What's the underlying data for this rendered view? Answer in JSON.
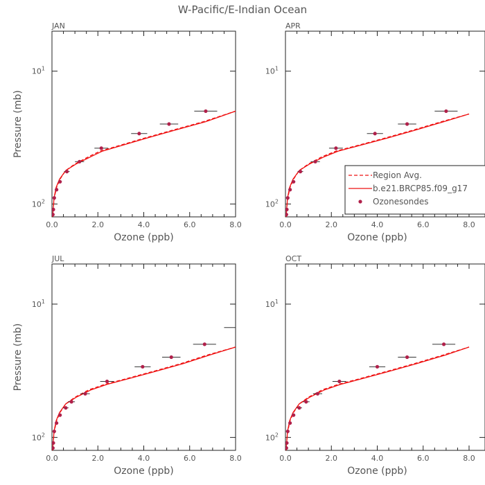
{
  "title": "W-Pacific/E-Indian Ocean",
  "colors": {
    "model": "#ee1111",
    "obs": "#b0204a",
    "axis": "#222222",
    "text": "#555555",
    "errorbar": "#333333"
  },
  "legend": {
    "entries": [
      "Region Avg.",
      "b.e21.BRCP85.f09_g17",
      "Ozonesondes"
    ]
  },
  "chart_data": [
    {
      "type": "line",
      "panel": "JAN",
      "xlabel": "Ozone (ppb)",
      "ylabel": "Pressure (mb)",
      "xlim": [
        0,
        8
      ],
      "ylim": [
        125,
        5
      ],
      "yscale": "log",
      "xticks": [
        "0.0",
        "2.0",
        "4.0",
        "6.0",
        "8.0"
      ],
      "yticks": [
        {
          "value": 10,
          "base": "10",
          "exp": "1"
        },
        {
          "value": 100,
          "base": "10",
          "exp": "2"
        }
      ],
      "series": [
        {
          "name": "Region Avg.",
          "style": "dashed",
          "x": [
            0.03,
            0.05,
            0.1,
            0.2,
            0.35,
            0.6,
            1.0,
            1.6,
            2.1,
            3.0,
            4.0,
            5.2,
            6.6,
            8.0
          ],
          "y": [
            125,
            110,
            90,
            75,
            65,
            56,
            50,
            44,
            40,
            36,
            32,
            28,
            24,
            20
          ]
        },
        {
          "name": "b.e21.BRCP85.f09_g17",
          "style": "solid",
          "x": [
            0.03,
            0.05,
            0.09,
            0.18,
            0.33,
            0.6,
            1.05,
            1.7,
            2.2,
            3.1,
            4.1,
            5.3,
            6.7,
            8.0
          ],
          "y": [
            125,
            110,
            90,
            75,
            65,
            56,
            50,
            44,
            40,
            36,
            32,
            28,
            24,
            20
          ]
        },
        {
          "name": "Ozonesondes",
          "style": "points",
          "x": [
            0.04,
            0.06,
            0.1,
            0.2,
            0.35,
            0.65,
            1.2,
            2.15,
            3.8,
            5.1,
            6.7
          ],
          "y": [
            120,
            110,
            90,
            78,
            68,
            57,
            48,
            38,
            29.5,
            25,
            20
          ],
          "xerr": [
            0.02,
            0.02,
            0.03,
            0.05,
            0.08,
            0.12,
            0.2,
            0.3,
            0.35,
            0.4,
            0.5
          ]
        }
      ]
    },
    {
      "type": "line",
      "panel": "APR",
      "xlabel": "Ozone (ppb)",
      "ylabel": "",
      "xlim": [
        0,
        8
      ],
      "ylim": [
        125,
        5
      ],
      "yscale": "log",
      "xticks": [
        "0.0",
        "2.0",
        "4.0",
        "6.0",
        "8.0"
      ],
      "yticks": [
        {
          "value": 10,
          "base": "10",
          "exp": "1"
        },
        {
          "value": 100,
          "base": "10",
          "exp": "2"
        }
      ],
      "series": [
        {
          "name": "Region Avg.",
          "style": "dashed",
          "x": [
            0.03,
            0.05,
            0.1,
            0.2,
            0.35,
            0.6,
            1.0,
            1.6,
            2.2,
            3.2,
            4.3,
            5.5,
            6.8,
            8.0
          ],
          "y": [
            125,
            110,
            90,
            75,
            65,
            56,
            50,
            44,
            40,
            36,
            32,
            28,
            24,
            21
          ]
        },
        {
          "name": "b.e21.BRCP85.f09_g17",
          "style": "solid",
          "x": [
            0.03,
            0.05,
            0.09,
            0.18,
            0.33,
            0.6,
            1.05,
            1.7,
            2.3,
            3.3,
            4.4,
            5.6,
            6.9,
            8.0
          ],
          "y": [
            125,
            110,
            90,
            75,
            65,
            56,
            50,
            44,
            40,
            36,
            32,
            28,
            24,
            21
          ]
        },
        {
          "name": "Ozonesondes",
          "style": "points",
          "x": [
            0.04,
            0.06,
            0.1,
            0.2,
            0.35,
            0.65,
            1.3,
            2.2,
            3.9,
            5.3,
            7.0
          ],
          "y": [
            120,
            110,
            90,
            78,
            68,
            57,
            48,
            38,
            29.5,
            25,
            20
          ],
          "xerr": [
            0.02,
            0.02,
            0.03,
            0.05,
            0.08,
            0.12,
            0.2,
            0.3,
            0.35,
            0.4,
            0.5
          ]
        }
      ]
    },
    {
      "type": "line",
      "panel": "JUL",
      "xlabel": "Ozone (ppb)",
      "ylabel": "Pressure (mb)",
      "xlim": [
        0,
        8
      ],
      "ylim": [
        125,
        5
      ],
      "yscale": "log",
      "xticks": [
        "0.0",
        "2.0",
        "4.0",
        "6.0",
        "8.0"
      ],
      "yticks": [
        {
          "value": 10,
          "base": "10",
          "exp": "1"
        },
        {
          "value": 100,
          "base": "10",
          "exp": "2"
        }
      ],
      "series": [
        {
          "name": "Region Avg.",
          "style": "dashed",
          "x": [
            0.03,
            0.05,
            0.1,
            0.2,
            0.35,
            0.6,
            1.0,
            1.6,
            2.3,
            3.3,
            4.4,
            5.6,
            6.8,
            8.0
          ],
          "y": [
            125,
            110,
            90,
            75,
            65,
            56,
            50,
            44,
            40,
            36,
            32,
            28,
            24,
            21
          ]
        },
        {
          "name": "b.e21.BRCP85.f09_g17",
          "style": "solid",
          "x": [
            0.03,
            0.05,
            0.09,
            0.18,
            0.33,
            0.6,
            1.05,
            1.7,
            2.4,
            3.4,
            4.5,
            5.7,
            6.9,
            8.0
          ],
          "y": [
            125,
            110,
            90,
            75,
            65,
            56,
            50,
            44,
            40,
            36,
            32,
            28,
            24,
            21
          ]
        },
        {
          "name": "Ozonesondes",
          "style": "points",
          "x": [
            0.04,
            0.06,
            0.1,
            0.2,
            0.35,
            0.6,
            0.85,
            1.45,
            2.4,
            3.95,
            5.2,
            6.65
          ],
          "y": [
            120,
            110,
            90,
            78,
            68,
            60,
            54,
            47,
            38,
            29.5,
            25,
            20
          ],
          "xerr": [
            0.02,
            0.02,
            0.03,
            0.05,
            0.08,
            0.12,
            0.15,
            0.2,
            0.3,
            0.35,
            0.4,
            0.5
          ]
        },
        {
          "name": "",
          "style": "errbar-only",
          "x": [
            8.0,
            8.0
          ],
          "y": [
            10,
            15
          ],
          "xerr": [
            0.2,
            0.5
          ]
        }
      ]
    },
    {
      "type": "line",
      "panel": "OCT",
      "xlabel": "Ozone (ppb)",
      "ylabel": "",
      "xlim": [
        0,
        8
      ],
      "ylim": [
        125,
        5
      ],
      "yscale": "log",
      "xticks": [
        "0.0",
        "2.0",
        "4.0",
        "6.0",
        "8.0"
      ],
      "yticks": [
        {
          "value": 10,
          "base": "10",
          "exp": "1"
        },
        {
          "value": 100,
          "base": "10",
          "exp": "2"
        }
      ],
      "series": [
        {
          "name": "Region Avg.",
          "style": "dashed",
          "x": [
            0.03,
            0.05,
            0.1,
            0.2,
            0.35,
            0.6,
            1.0,
            1.6,
            2.3,
            3.3,
            4.4,
            5.6,
            6.9,
            8.0
          ],
          "y": [
            125,
            110,
            90,
            75,
            65,
            56,
            50,
            44,
            40,
            36,
            32,
            28,
            24,
            21
          ]
        },
        {
          "name": "b.e21.BRCP85.f09_g17",
          "style": "solid",
          "x": [
            0.03,
            0.05,
            0.09,
            0.18,
            0.33,
            0.6,
            1.05,
            1.7,
            2.4,
            3.4,
            4.5,
            5.7,
            7.0,
            8.0
          ],
          "y": [
            125,
            110,
            90,
            75,
            65,
            56,
            50,
            44,
            40,
            36,
            32,
            28,
            24,
            21
          ]
        },
        {
          "name": "Ozonesondes",
          "style": "points",
          "x": [
            0.04,
            0.06,
            0.1,
            0.2,
            0.35,
            0.6,
            0.9,
            1.4,
            2.35,
            4.0,
            5.3,
            6.9
          ],
          "y": [
            120,
            110,
            90,
            78,
            68,
            60,
            54,
            47,
            38,
            29.5,
            25,
            20
          ],
          "xerr": [
            0.02,
            0.02,
            0.03,
            0.05,
            0.08,
            0.12,
            0.15,
            0.2,
            0.3,
            0.35,
            0.4,
            0.5
          ]
        }
      ]
    }
  ]
}
